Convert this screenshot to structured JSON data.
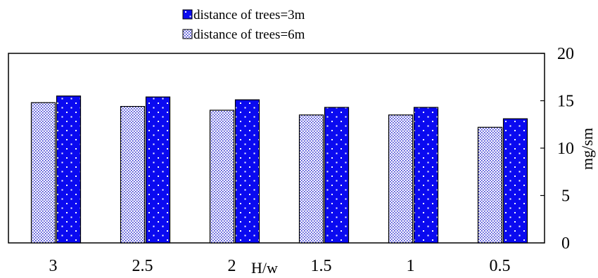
{
  "colors": {
    "series_3m": "#0a0af0",
    "series_6m": "#ffffff",
    "series_6m_dots": "#2a2ad0",
    "axis": "#000000",
    "background": "#ffffff"
  },
  "chart_data": {
    "type": "bar",
    "title": "",
    "xlabel": "H/w",
    "ylabel": "mg/sm",
    "categories": [
      "3",
      "2.5",
      "2",
      "1.5",
      "1",
      "0.5"
    ],
    "ylim": [
      0,
      20
    ],
    "yticks": [
      "0",
      "5",
      "10",
      "15",
      "20"
    ],
    "y_axis_side": "right",
    "grid": false,
    "legend_position": "top-center",
    "series": [
      {
        "name": "distance of trees=6m",
        "pattern": "dotted-white",
        "values": [
          14.8,
          14.4,
          14.0,
          13.5,
          13.5,
          12.2
        ]
      },
      {
        "name": "distance of trees=3m",
        "pattern": "blue-sparse-dots",
        "values": [
          15.5,
          15.4,
          15.1,
          14.3,
          14.3,
          13.1
        ]
      }
    ],
    "legend_order": [
      "distance of trees=3m",
      "distance of trees=6m"
    ]
  }
}
